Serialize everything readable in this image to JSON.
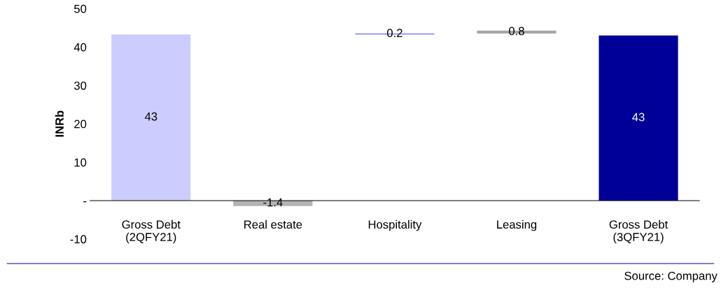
{
  "chart_data": {
    "type": "bar",
    "ylabel": "INRb",
    "categories": [
      "Gross Debt\n(2QFY21)",
      "Real estate",
      "Hospitality",
      "Leasing",
      "Gross Debt\n(3QFY21)"
    ],
    "values": [
      43.3,
      -1.4,
      0.2,
      0.8,
      43.0
    ],
    "base": [
      0,
      0,
      43.3,
      43.5,
      0
    ],
    "colors": [
      "#ccccff",
      "#b3b3b3",
      "#6666ff",
      "#a6a6a6",
      "#000099"
    ],
    "value_labels": [
      "43",
      "-1.4",
      "0.2",
      "0.8",
      "43"
    ],
    "ylim": [
      -10,
      50
    ],
    "yticks": [
      {
        "value": -10,
        "label": "-10"
      },
      {
        "value": 0,
        "label": "-"
      },
      10,
      20,
      30,
      40,
      50
    ],
    "grid": false,
    "legend": false,
    "annotations": [
      "Source: Company"
    ]
  }
}
